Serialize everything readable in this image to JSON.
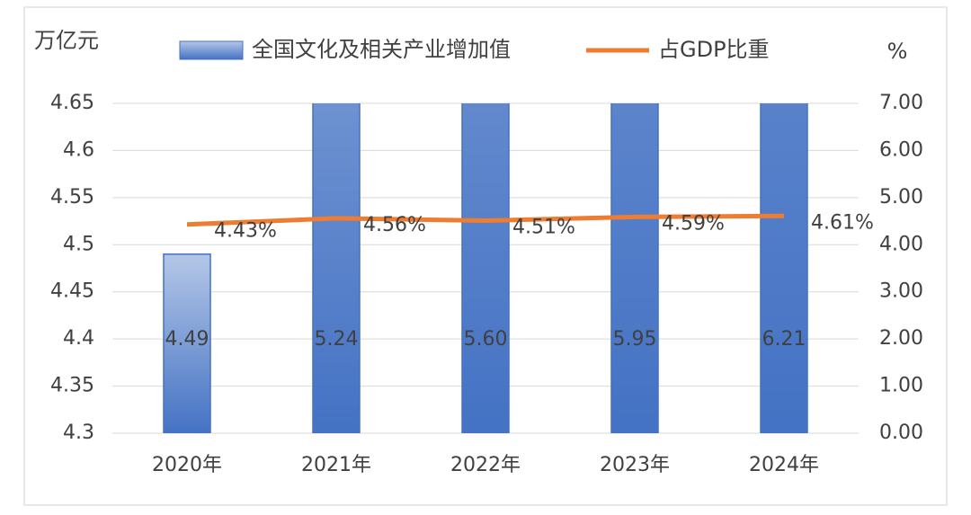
{
  "chart_data": {
    "type": "bar-line",
    "y_label": "万亿元",
    "y2_label": "%",
    "categories": [
      "2020年",
      "2021年",
      "2022年",
      "2023年",
      "2024年"
    ],
    "series": [
      {
        "name": "全国文化及相关产业增加值",
        "type": "bar",
        "axis": "y",
        "color": "#4472c4",
        "values": [
          4.49,
          5.24,
          5.6,
          5.95,
          6.21
        ],
        "value_labels": [
          "4.49",
          "5.24",
          "5.60",
          "5.95",
          "6.21"
        ]
      },
      {
        "name": "占GDP比重",
        "type": "line",
        "axis": "y2",
        "color": "#ed7d31",
        "values": [
          4.43,
          4.56,
          4.51,
          4.59,
          4.61
        ],
        "value_labels": [
          "4.43%",
          "4.56%",
          "4.51%",
          "4.59%",
          "4.61%"
        ]
      }
    ],
    "ylim": [
      4.3,
      4.65
    ],
    "yticks": [
      4.3,
      4.35,
      4.4,
      4.45,
      4.5,
      4.55,
      4.6,
      4.65
    ],
    "y2lim": [
      0,
      7
    ],
    "y2ticks": [
      {
        "value": 0,
        "label": "0.00"
      },
      {
        "value": 1,
        "label": "1.00"
      },
      {
        "value": 2,
        "label": "2.00"
      },
      {
        "value": 3,
        "label": "3.00"
      },
      {
        "value": 4,
        "label": "4.00"
      },
      {
        "value": 5,
        "label": "5.00"
      },
      {
        "value": 6,
        "label": "6.00"
      },
      {
        "value": 7,
        "label": "7.00"
      }
    ],
    "grid": true,
    "legend": "top"
  }
}
